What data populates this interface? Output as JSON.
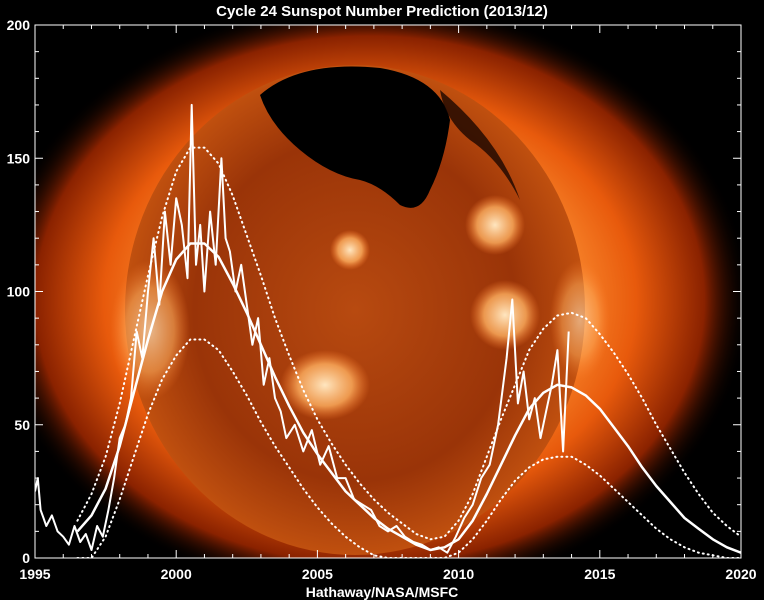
{
  "chart_data": {
    "type": "line",
    "title": "Cycle 24 Sunspot Number Prediction (2013/12)",
    "xlabel": "Hathaway/NASA/MSFC",
    "ylabel": "",
    "xlim": [
      1995,
      2020
    ],
    "ylim": [
      0,
      200
    ],
    "x_ticks": [
      "1995",
      "2000",
      "2005",
      "2010",
      "2015",
      "2020"
    ],
    "y_ticks": [
      "0",
      "50",
      "100",
      "150",
      "200"
    ],
    "grid": false,
    "background": "solar x-ray image",
    "colors": {
      "lines": "#ffffff",
      "axes": "#ffffff",
      "background": "#000000"
    },
    "series": [
      {
        "style": "solid-jagged",
        "x": [
          1995.0,
          1995.1,
          1995.2,
          1995.3,
          1995.4,
          1995.6,
          1995.8,
          1996.0,
          1996.2,
          1996.4,
          1996.6,
          1996.8,
          1997.0,
          1997.2,
          1997.4,
          1997.6,
          1997.8,
          1998.0,
          1998.2,
          1998.4,
          1998.6,
          1998.8,
          1999.0,
          1999.2,
          1999.4,
          1999.6,
          1999.8,
          2000.0,
          2000.2,
          2000.4,
          2000.55,
          2000.7,
          2000.85,
          2001.0,
          2001.2,
          2001.4,
          2001.6,
          2001.75,
          2001.9,
          2002.1,
          2002.3,
          2002.5,
          2002.7,
          2002.9,
          2003.1,
          2003.3,
          2003.5,
          2003.7,
          2003.9,
          2004.2,
          2004.5,
          2004.8,
          2005.1,
          2005.4,
          2005.7,
          2006.0,
          2006.3,
          2006.6,
          2006.9,
          2007.2,
          2007.5,
          2007.8,
          2008.1,
          2008.4,
          2008.7,
          2009.0,
          2009.3,
          2009.6,
          2009.9,
          2010.2,
          2010.5,
          2010.8,
          2011.1,
          2011.4,
          2011.7,
          2011.9,
          2012.1,
          2012.3,
          2012.5,
          2012.7,
          2012.9,
          2013.1,
          2013.3,
          2013.5,
          2013.7,
          2013.9
        ],
        "y": [
          25,
          30,
          18,
          15,
          12,
          16,
          10,
          8,
          5,
          12,
          6,
          9,
          3,
          12,
          8,
          18,
          30,
          45,
          50,
          60,
          85,
          75,
          100,
          120,
          95,
          130,
          110,
          135,
          125,
          105,
          170,
          110,
          125,
          100,
          130,
          110,
          150,
          120,
          115,
          100,
          110,
          95,
          80,
          90,
          65,
          75,
          60,
          55,
          45,
          50,
          40,
          48,
          35,
          42,
          30,
          30,
          22,
          20,
          18,
          12,
          10,
          12,
          8,
          6,
          5,
          3,
          4,
          2,
          8,
          15,
          20,
          30,
          35,
          50,
          75,
          97,
          58,
          70,
          52,
          60,
          45,
          55,
          65,
          78,
          40,
          85
        ]
      },
      {
        "style": "solid-smooth",
        "x": [
          1996.5,
          1997,
          1997.5,
          1998,
          1998.5,
          1999,
          1999.5,
          2000,
          2000.5,
          2001,
          2001.5,
          2002,
          2002.5,
          2003,
          2003.5,
          2004,
          2004.5,
          2005,
          2005.5,
          2006,
          2006.5,
          2007,
          2007.5,
          2008,
          2008.5,
          2009,
          2009.5,
          2010,
          2010.5,
          2011,
          2011.5,
          2012,
          2012.5,
          2013,
          2013.5,
          2014,
          2014.5,
          2015,
          2015.5,
          2016,
          2016.5,
          2017,
          2017.5,
          2018,
          2018.5,
          2019,
          2019.5,
          2020
        ],
        "y": [
          10,
          16,
          26,
          42,
          62,
          82,
          100,
          112,
          118,
          118,
          113,
          103,
          92,
          80,
          68,
          57,
          47,
          39,
          32,
          25,
          20,
          15,
          11,
          8,
          5,
          3,
          4,
          7,
          14,
          24,
          35,
          46,
          56,
          62,
          65,
          64,
          61,
          56,
          49,
          42,
          34,
          27,
          21,
          15,
          11,
          7,
          4,
          2
        ]
      },
      {
        "style": "dotted-upper",
        "x": [
          1996.5,
          1997,
          1997.5,
          1998,
          1998.5,
          1999,
          1999.5,
          2000,
          2000.5,
          2001,
          2001.5,
          2002,
          2002.5,
          2003,
          2003.5,
          2004,
          2004.5,
          2005,
          2005.5,
          2006,
          2006.5,
          2007,
          2007.5,
          2008,
          2008.5,
          2009,
          2009.5,
          2010,
          2010.5,
          2011,
          2011.5,
          2012,
          2012.5,
          2013,
          2013.5,
          2014,
          2014.5,
          2015,
          2015.5,
          2016,
          2016.5,
          2017,
          2017.5,
          2018,
          2018.5,
          2019,
          2019.5,
          2020
        ],
        "y": [
          14,
          24,
          38,
          58,
          82,
          106,
          128,
          145,
          154,
          154,
          148,
          136,
          121,
          106,
          90,
          76,
          63,
          52,
          43,
          35,
          28,
          22,
          17,
          13,
          9,
          7,
          8,
          14,
          24,
          38,
          52,
          65,
          78,
          86,
          91,
          92,
          90,
          84,
          77,
          69,
          60,
          50,
          41,
          32,
          24,
          17,
          12,
          8
        ]
      },
      {
        "style": "dotted-lower",
        "x": [
          1996.5,
          1997,
          1997.5,
          1998,
          1998.5,
          1999,
          1999.5,
          2000,
          2000.5,
          2001,
          2001.5,
          2002,
          2002.5,
          2003,
          2003.5,
          2004,
          2004.5,
          2005,
          2005.5,
          2006,
          2006.5,
          2007,
          2007.5,
          2008,
          2008.5,
          2009,
          2009.5,
          2010,
          2010.5,
          2011,
          2011.5,
          2012,
          2012.5,
          2013,
          2013.5,
          2014,
          2014.5,
          2015,
          2015.5,
          2016,
          2016.5,
          2017,
          2017.5,
          2018,
          2018.5,
          2019,
          2019.5,
          2020
        ],
        "y": [
          0,
          0,
          8,
          22,
          38,
          54,
          67,
          76,
          82,
          82,
          78,
          70,
          61,
          51,
          42,
          34,
          26,
          19,
          13,
          8,
          4,
          1,
          0,
          0,
          0,
          0,
          0,
          2,
          7,
          14,
          22,
          29,
          34,
          37,
          38,
          38,
          35,
          31,
          26,
          21,
          16,
          11,
          7,
          4,
          2,
          1,
          0,
          0
        ]
      }
    ]
  }
}
